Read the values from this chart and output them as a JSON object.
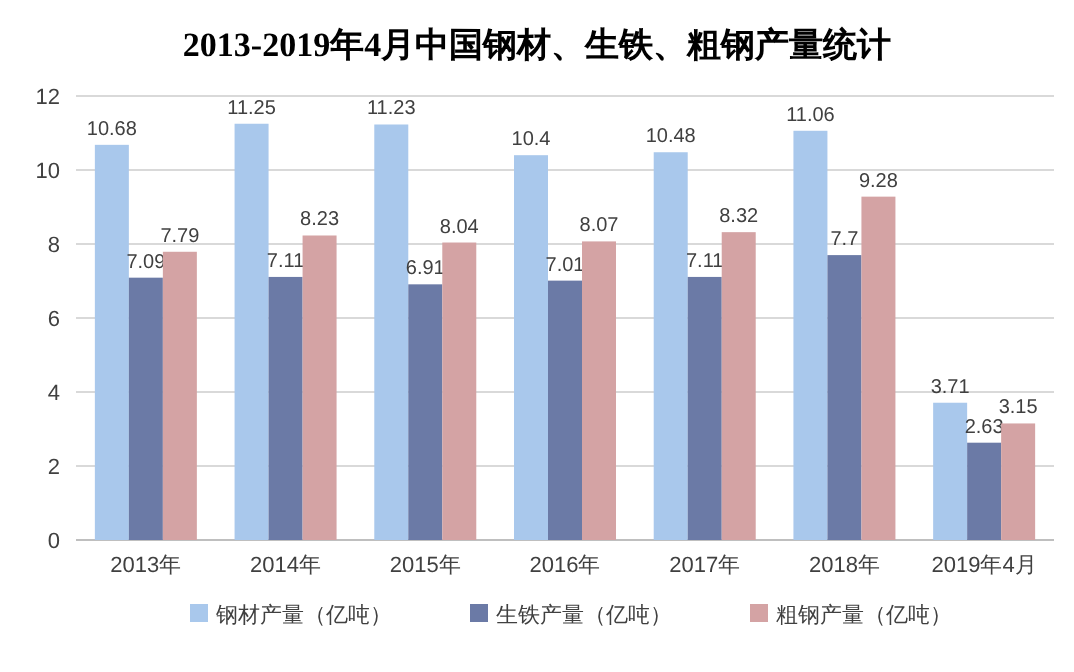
{
  "chart_data": {
    "type": "bar",
    "title": "2013-2019年4月中国钢材、生铁、粗钢产量统计",
    "categories": [
      "2013年",
      "2014年",
      "2015年",
      "2016年",
      "2017年",
      "2018年",
      "2019年4月"
    ],
    "series": [
      {
        "name": "钢材产量（亿吨）",
        "color": "#a9c8ec",
        "values": [
          10.68,
          11.25,
          11.23,
          10.4,
          10.48,
          11.06,
          3.71
        ]
      },
      {
        "name": "生铁产量（亿吨）",
        "color": "#6b7aa6",
        "values": [
          7.09,
          7.11,
          6.91,
          7.01,
          7.11,
          7.7,
          2.63
        ]
      },
      {
        "name": "粗钢产量（亿吨）",
        "color": "#d4a3a4",
        "values": [
          7.79,
          8.23,
          8.04,
          8.07,
          8.32,
          9.28,
          3.15
        ]
      }
    ],
    "ylim": [
      0,
      12
    ],
    "yticks": [
      0,
      2,
      4,
      6,
      8,
      10,
      12
    ],
    "grid": "y",
    "legend": "bottom",
    "data_labels": true
  }
}
